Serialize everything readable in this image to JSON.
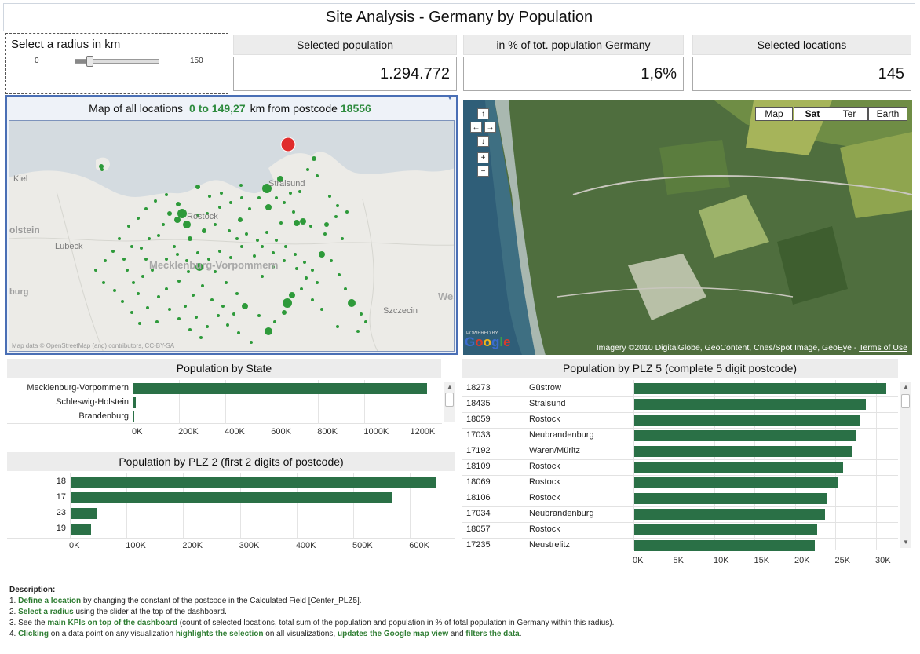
{
  "title": "Site Analysis - Germany by Population",
  "radius": {
    "label": "Select a radius in km",
    "min": "0",
    "max": "150",
    "value_fraction": 0.17
  },
  "kpis": [
    {
      "label": "Selected population",
      "value": "1.294.772"
    },
    {
      "label": "in % of tot. population Germany",
      "value": "1,6%"
    },
    {
      "label": "Selected locations",
      "value": "145"
    }
  ],
  "map": {
    "header_prefix": "Map of all locations",
    "range": "0 to 149,27",
    "header_mid": "km from postcode",
    "postcode": "18556",
    "attribution": "Map data © OpenStreetMap (and) contributors, CC-BY-SA",
    "labels": [
      "Kiel",
      "olstein",
      "Lubeck",
      "Mecklenburg-Vorpommern",
      "Rostock",
      "Stralsund",
      "burg",
      "Szczecin",
      "Wes"
    ],
    "marker_color": "#2e9a3a",
    "center_color": "#e02c2c"
  },
  "satellite": {
    "map_types": [
      "Map",
      "Sat",
      "Ter",
      "Earth"
    ],
    "active_type": "Sat",
    "nav": {
      "up": "↑",
      "left": "←",
      "right": "→",
      "down": "↓",
      "zoom_in": "+",
      "zoom_out": "−"
    },
    "powered_by": "POWERED BY",
    "logo": "Google",
    "attribution": "Imagery ©2010 DigitalGlobe, GeoContent, Cnes/Spot Image, GeoEye -",
    "terms": "Terms of Use"
  },
  "charts": {
    "state": {
      "title": "Population by State",
      "rows": [
        {
          "label": "Mecklenburg-Vorpommern",
          "value": 1265000
        },
        {
          "label": "Schleswig-Holstein",
          "value": 10000
        },
        {
          "label": "Brandenburg",
          "value": 1500
        }
      ],
      "ticks": [
        "0K",
        "200K",
        "400K",
        "600K",
        "800K",
        "1000K",
        "1200K"
      ],
      "max": 1300000
    },
    "plz2": {
      "title": "Population by PLZ 2 (first 2 digits of postcode)",
      "rows": [
        {
          "label": "18",
          "value": 645000
        },
        {
          "label": "17",
          "value": 567000
        },
        {
          "label": "23",
          "value": 47000
        },
        {
          "label": "19",
          "value": 36000
        }
      ],
      "ticks": [
        "0K",
        "100K",
        "200K",
        "300K",
        "400K",
        "500K",
        "600K"
      ],
      "max": 680000
    },
    "plz5": {
      "title": "Population by PLZ 5 (complete 5 digit postcode)",
      "rows": [
        {
          "code": "18273",
          "city": "Güstrow",
          "value": 31200
        },
        {
          "code": "18435",
          "city": "Stralsund",
          "value": 28600
        },
        {
          "code": "18059",
          "city": "Rostock",
          "value": 27900
        },
        {
          "code": "17033",
          "city": "Neubrandenburg",
          "value": 27400
        },
        {
          "code": "17192",
          "city": "Waren/Müritz",
          "value": 26900
        },
        {
          "code": "18109",
          "city": "Rostock",
          "value": 25800
        },
        {
          "code": "18069",
          "city": "Rostock",
          "value": 25200
        },
        {
          "code": "18106",
          "city": "Rostock",
          "value": 23900
        },
        {
          "code": "17034",
          "city": "Neubrandenburg",
          "value": 23600
        },
        {
          "code": "18057",
          "city": "Rostock",
          "value": 22600
        },
        {
          "code": "17235",
          "city": "Neustrelitz",
          "value": 22300
        }
      ],
      "ticks": [
        "0K",
        "5K",
        "10K",
        "15K",
        "20K",
        "25K",
        "30K"
      ],
      "max": 33500
    }
  },
  "description": {
    "heading": "Description:",
    "items": [
      [
        {
          "t": "1. "
        },
        {
          "t": "Define a location",
          "g": true
        },
        {
          "t": " by changing the constant of the postcode in the Calculated Field [Center_PLZ5]."
        }
      ],
      [
        {
          "t": "2. "
        },
        {
          "t": "Select a radius",
          "g": true
        },
        {
          "t": " using the slider at the top of the dashboard."
        }
      ],
      [
        {
          "t": "3. See the "
        },
        {
          "t": "main KPIs on top of the dashboard",
          "g": true
        },
        {
          "t": " (count of selected locations, total sum of the population and population in % of total population in Germany within this radius)."
        }
      ],
      [
        {
          "t": "4. "
        },
        {
          "t": "Clicking",
          "g": true
        },
        {
          "t": " on a data point on any visualization "
        },
        {
          "t": "highlights the selection",
          "g": true
        },
        {
          "t": " on all visualizations, "
        },
        {
          "t": "updates the Google map view",
          "g": true
        },
        {
          "t": " and "
        },
        {
          "t": "filters the data",
          "g": true
        },
        {
          "t": "."
        }
      ]
    ]
  }
}
